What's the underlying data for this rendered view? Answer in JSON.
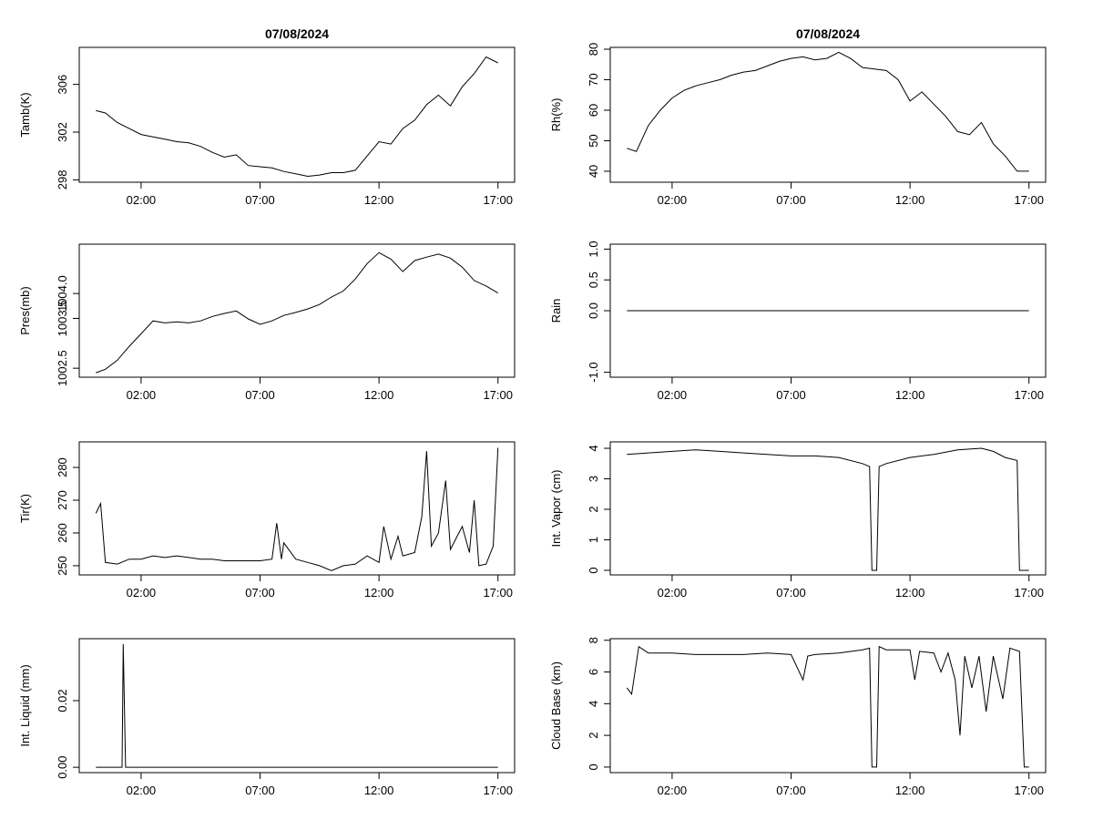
{
  "chart_data": [
    {
      "type": "line",
      "title": "07/08/2024",
      "ylabel": "Tamb(K)",
      "color": "#000000",
      "x": [
        0.1,
        0.5,
        1,
        1.5,
        2,
        2.5,
        3,
        3.5,
        4,
        4.5,
        5,
        5.5,
        6,
        6.5,
        7,
        7.5,
        8,
        8.5,
        9,
        9.5,
        10,
        10.5,
        11,
        11.5,
        12,
        12.5,
        13,
        13.5,
        14,
        14.5,
        15,
        15.5,
        16,
        16.5,
        17
      ],
      "values": [
        303.8,
        303.6,
        302.8,
        302.3,
        301.8,
        301.6,
        301.4,
        301.2,
        301.1,
        300.8,
        300.3,
        299.9,
        300.1,
        299.2,
        299.1,
        299.0,
        298.7,
        298.5,
        298.3,
        298.4,
        298.6,
        298.6,
        298.8,
        300.0,
        301.2,
        301.0,
        302.3,
        303.0,
        304.3,
        305.1,
        304.2,
        305.8,
        306.9,
        308.3,
        307.8
      ],
      "xlim": [
        -0.6,
        17.7
      ],
      "xticks": [
        {
          "value": 2,
          "label": "02:00"
        },
        {
          "value": 7,
          "label": "07:00"
        },
        {
          "value": 12,
          "label": "12:00"
        },
        {
          "value": 17,
          "label": "17:00"
        }
      ],
      "ylim": [
        297.8,
        309.1
      ],
      "yticks": [
        298,
        302,
        306
      ]
    },
    {
      "type": "line",
      "title": "07/08/2024",
      "ylabel": "Rh(%)",
      "color": "#000000",
      "x": [
        0.1,
        0.5,
        1,
        1.5,
        2,
        2.5,
        3,
        3.5,
        4,
        4.5,
        5,
        5.5,
        6,
        6.5,
        7,
        7.5,
        8,
        8.5,
        9,
        9.5,
        10,
        10.5,
        11,
        11.5,
        12,
        12.5,
        13,
        13.5,
        14,
        14.5,
        15,
        15.5,
        16,
        16.5,
        17
      ],
      "values": [
        47.5,
        46.5,
        55,
        60,
        64,
        66.5,
        68,
        69,
        70,
        71.5,
        72.5,
        73,
        74.5,
        76,
        77,
        77.5,
        76.5,
        77,
        79,
        77,
        74,
        73.5,
        73,
        70,
        63,
        66,
        62,
        58,
        53,
        52,
        56,
        49,
        45,
        40,
        40
      ],
      "xlim": [
        -0.6,
        17.7
      ],
      "xticks": [
        {
          "value": 2,
          "label": "02:00"
        },
        {
          "value": 7,
          "label": "07:00"
        },
        {
          "value": 12,
          "label": "12:00"
        },
        {
          "value": 17,
          "label": "17:00"
        }
      ],
      "ylim": [
        36.4,
        80.6
      ],
      "yticks": [
        40,
        50,
        60,
        70,
        80
      ]
    },
    {
      "type": "line",
      "ylabel": "Pres(mb)",
      "color": "#000000",
      "x": [
        0.1,
        0.5,
        1,
        1.5,
        2,
        2.5,
        3,
        3.5,
        4,
        4.5,
        5,
        5.5,
        6,
        6.5,
        7,
        7.5,
        8,
        8.5,
        9,
        9.5,
        10,
        10.5,
        11,
        11.5,
        12,
        12.5,
        13,
        13.5,
        14,
        14.5,
        15,
        15.5,
        16,
        16.5,
        17
      ],
      "values": [
        1002.41,
        1002.48,
        1002.66,
        1002.94,
        1003.19,
        1003.45,
        1003.41,
        1003.43,
        1003.41,
        1003.45,
        1003.54,
        1003.6,
        1003.65,
        1003.49,
        1003.38,
        1003.45,
        1003.56,
        1003.62,
        1003.69,
        1003.78,
        1003.93,
        1004.05,
        1004.29,
        1004.6,
        1004.82,
        1004.69,
        1004.44,
        1004.66,
        1004.73,
        1004.79,
        1004.71,
        1004.53,
        1004.26,
        1004.15,
        1004.01
      ],
      "xlim": [
        -0.6,
        17.7
      ],
      "xticks": [
        {
          "value": 2,
          "label": "02:00"
        },
        {
          "value": 7,
          "label": "07:00"
        },
        {
          "value": 12,
          "label": "12:00"
        },
        {
          "value": 17,
          "label": "17:00"
        }
      ],
      "ylim": [
        1002.32,
        1004.99
      ],
      "yticks": [
        1002.5,
        1003.5,
        {
          "value": 1004,
          "label": "1004.0"
        }
      ]
    },
    {
      "type": "line",
      "ylabel": "Rain",
      "color": "#000000",
      "x": [
        0.1,
        17
      ],
      "values": [
        0,
        0
      ],
      "xlim": [
        -0.6,
        17.7
      ],
      "xticks": [
        {
          "value": 2,
          "label": "02:00"
        },
        {
          "value": 7,
          "label": "07:00"
        },
        {
          "value": 12,
          "label": "12:00"
        },
        {
          "value": 17,
          "label": "17:00"
        }
      ],
      "ylim": [
        -1.08,
        1.08
      ],
      "yticks": [
        {
          "value": -1,
          "label": "-1.0"
        },
        {
          "value": 0,
          "label": "0.0"
        },
        0.5,
        {
          "value": 1,
          "label": "1.0"
        }
      ]
    },
    {
      "type": "line",
      "ylabel": "Tir(K)",
      "color": "#000000",
      "x": [
        0.1,
        0.3,
        0.5,
        1,
        1.5,
        2,
        2.5,
        3,
        3.5,
        4,
        4.5,
        5,
        5.5,
        6,
        6.5,
        7,
        7.5,
        7.7,
        7.9,
        8,
        8.5,
        9,
        9.5,
        10,
        10.5,
        11,
        11.5,
        12,
        12.2,
        12.5,
        12.8,
        13,
        13.5,
        13.8,
        14,
        14.2,
        14.5,
        14.8,
        15,
        15.5,
        15.8,
        16,
        16.2,
        16.5,
        16.8,
        17
      ],
      "values": [
        266,
        269,
        251,
        250.5,
        252,
        252,
        253,
        252.5,
        253,
        252.5,
        252,
        252,
        251.5,
        251.5,
        251.5,
        251.5,
        252,
        263,
        252,
        257,
        252,
        251,
        250,
        248.5,
        250,
        250.5,
        253,
        251,
        262,
        252,
        259,
        253,
        254,
        265,
        285,
        256,
        260,
        276,
        255,
        262,
        254,
        270,
        250,
        250.5,
        256,
        286
      ],
      "xlim": [
        -0.6,
        17.7
      ],
      "xticks": [
        {
          "value": 2,
          "label": "02:00"
        },
        {
          "value": 7,
          "label": "07:00"
        },
        {
          "value": 12,
          "label": "12:00"
        },
        {
          "value": 17,
          "label": "17:00"
        }
      ],
      "ylim": [
        247.2,
        287.8
      ],
      "yticks": [
        250,
        260,
        270,
        280
      ]
    },
    {
      "type": "line",
      "ylabel": "Int. Vapor (cm)",
      "color": "#000000",
      "x": [
        0.1,
        1,
        2,
        3,
        4,
        5,
        6,
        7,
        8,
        9,
        10,
        10.3,
        10.4,
        10.6,
        10.7,
        11,
        12,
        13,
        14,
        15,
        15.5,
        16,
        16.5,
        16.6,
        17
      ],
      "values": [
        3.8,
        3.85,
        3.9,
        3.95,
        3.9,
        3.85,
        3.8,
        3.75,
        3.75,
        3.7,
        3.5,
        3.4,
        0,
        0,
        3.4,
        3.5,
        3.7,
        3.8,
        3.95,
        4.0,
        3.9,
        3.7,
        3.6,
        0,
        0
      ],
      "xlim": [
        -0.6,
        17.7
      ],
      "xticks": [
        {
          "value": 2,
          "label": "02:00"
        },
        {
          "value": 7,
          "label": "07:00"
        },
        {
          "value": 12,
          "label": "12:00"
        },
        {
          "value": 17,
          "label": "17:00"
        }
      ],
      "ylim": [
        -0.15,
        4.21
      ],
      "yticks": [
        0,
        1,
        2,
        3,
        4
      ]
    },
    {
      "type": "line",
      "ylabel": "Int. Liquid (mm)",
      "color": "#000000",
      "x": [
        0.1,
        1.2,
        1.25,
        1.3,
        1.35,
        17
      ],
      "values": [
        0,
        0,
        0.037,
        0.018,
        0,
        0
      ],
      "xlim": [
        -0.6,
        17.7
      ],
      "xticks": [
        {
          "value": 2,
          "label": "02:00"
        },
        {
          "value": 7,
          "label": "07:00"
        },
        {
          "value": 12,
          "label": "12:00"
        },
        {
          "value": 17,
          "label": "17:00"
        }
      ],
      "ylim": [
        -0.0016,
        0.0386
      ],
      "yticks": [
        {
          "value": 0,
          "label": "0.00"
        },
        0.02
      ]
    },
    {
      "type": "line",
      "ylabel": "Cloud Base (km)",
      "color": "#000000",
      "x": [
        0.1,
        0.3,
        0.6,
        1,
        2,
        3,
        4,
        5,
        6,
        7,
        7.5,
        7.7,
        8,
        9,
        10,
        10.3,
        10.4,
        10.6,
        10.7,
        11,
        12,
        12.2,
        12.4,
        13,
        13.3,
        13.6,
        13.9,
        14.1,
        14.3,
        14.6,
        14.9,
        15.2,
        15.5,
        15.9,
        16.2,
        16.6,
        16.8,
        17
      ],
      "values": [
        5,
        4.6,
        7.6,
        7.2,
        7.2,
        7.1,
        7.1,
        7.1,
        7.2,
        7.1,
        5.5,
        7.0,
        7.1,
        7.2,
        7.4,
        7.5,
        0,
        0,
        7.6,
        7.4,
        7.4,
        5.5,
        7.3,
        7.2,
        6.0,
        7.2,
        5.5,
        2.0,
        7.0,
        5.0,
        7.0,
        3.5,
        7.0,
        4.3,
        7.5,
        7.3,
        0,
        0
      ],
      "xlim": [
        -0.6,
        17.7
      ],
      "xticks": [
        {
          "value": 2,
          "label": "02:00"
        },
        {
          "value": 7,
          "label": "07:00"
        },
        {
          "value": 12,
          "label": "12:00"
        },
        {
          "value": 17,
          "label": "17:00"
        }
      ],
      "ylim": [
        -0.35,
        8.1
      ],
      "yticks": [
        0,
        2,
        4,
        6,
        8
      ]
    }
  ]
}
